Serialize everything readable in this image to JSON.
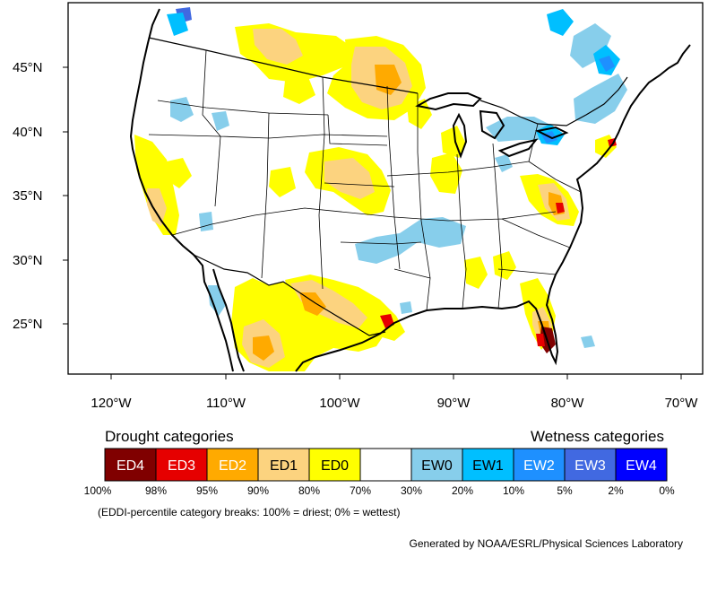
{
  "map": {
    "lat_labels": [
      "45°N",
      "40°N",
      "35°N",
      "30°N",
      "25°N"
    ],
    "lon_labels": [
      "120°W",
      "110°W",
      "100°W",
      "90°W",
      "80°W",
      "70°W"
    ]
  },
  "legend": {
    "drought_heading": "Drought categories",
    "wetness_heading": "Wetness categories",
    "categories": [
      {
        "label": "ED4",
        "color": "#800000",
        "text_color": "#ffffff"
      },
      {
        "label": "ED3",
        "color": "#e60000",
        "text_color": "#ffffff"
      },
      {
        "label": "ED2",
        "color": "#ffaa00",
        "text_color": "#ffffff"
      },
      {
        "label": "ED1",
        "color": "#fcd37f",
        "text_color": "#000000"
      },
      {
        "label": "ED0",
        "color": "#ffff00",
        "text_color": "#000000"
      },
      {
        "label": "",
        "color": "#ffffff",
        "text_color": "#000000"
      },
      {
        "label": "EW0",
        "color": "#87ceeb",
        "text_color": "#000000"
      },
      {
        "label": "EW1",
        "color": "#00bfff",
        "text_color": "#000000"
      },
      {
        "label": "EW2",
        "color": "#1e90ff",
        "text_color": "#ffffff"
      },
      {
        "label": "EW3",
        "color": "#4169e1",
        "text_color": "#ffffff"
      },
      {
        "label": "EW4",
        "color": "#0000ff",
        "text_color": "#ffffff"
      }
    ],
    "breaks": [
      "100%",
      "98%",
      "95%",
      "90%",
      "80%",
      "70%",
      "30%",
      "20%",
      "10%",
      "5%",
      "2%",
      "0%"
    ],
    "note": "(EDDI-percentile category breaks: 100% = driest; 0% = wettest)"
  },
  "credit": "Generated by NOAA/ESRL/Physical Sciences Laboratory",
  "colors": {
    "frame": "#000000",
    "boundary": "#000000",
    "land": "#ffffff"
  }
}
